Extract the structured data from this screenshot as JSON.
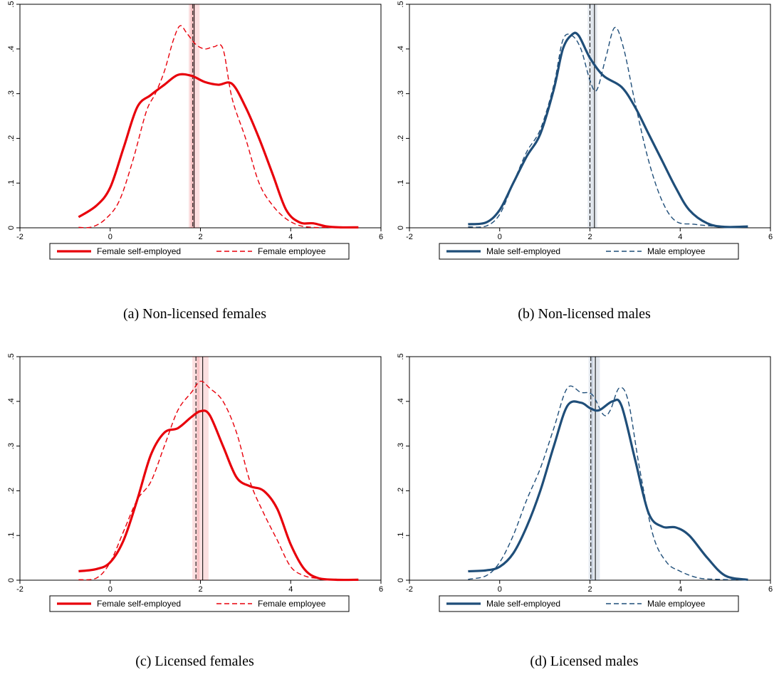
{
  "chart_data": [
    {
      "panel": "a",
      "type": "line",
      "caption": "(a) Non-licensed females",
      "xlim": [
        -2,
        6
      ],
      "ylim": [
        0,
        0.5
      ],
      "xticks": [
        "-2",
        "0",
        "2",
        "4",
        "6"
      ],
      "yticks": [
        ".5",
        ".4",
        ".3",
        ".2",
        ".1",
        "0"
      ],
      "grid": false,
      "legend_placement": "bottom",
      "color": "#e8000b",
      "vlines": [
        {
          "style": "dashed",
          "x": 1.83,
          "ci": [
            1.78,
            1.88
          ]
        },
        {
          "style": "solid",
          "x": 1.86,
          "ci": [
            1.74,
            1.98
          ]
        }
      ],
      "series": [
        {
          "name": "Female self-employed",
          "style": "solid",
          "x": [
            -0.7,
            -0.3,
            0,
            0.3,
            0.6,
            0.9,
            1.2,
            1.5,
            1.8,
            2.1,
            2.4,
            2.7,
            3.0,
            3.3,
            3.6,
            3.9,
            4.2,
            4.5,
            4.8,
            5.1,
            5.5
          ],
          "y": [
            0.024,
            0.05,
            0.09,
            0.18,
            0.27,
            0.297,
            0.32,
            0.342,
            0.34,
            0.326,
            0.32,
            0.322,
            0.27,
            0.2,
            0.12,
            0.04,
            0.012,
            0.01,
            0.003,
            0.001,
            0.001
          ]
        },
        {
          "name": "Female employee",
          "style": "dashed",
          "x": [
            -0.7,
            -0.4,
            -0.1,
            0.2,
            0.5,
            0.8,
            1.0,
            1.2,
            1.4,
            1.55,
            1.7,
            1.9,
            2.1,
            2.3,
            2.5,
            2.7,
            3.0,
            3.3,
            3.6,
            3.9,
            4.2,
            4.5,
            4.8,
            5.1,
            5.5
          ],
          "y": [
            0.001,
            0.002,
            0.02,
            0.06,
            0.15,
            0.26,
            0.3,
            0.35,
            0.42,
            0.452,
            0.435,
            0.41,
            0.4,
            0.405,
            0.4,
            0.29,
            0.2,
            0.1,
            0.05,
            0.02,
            0.005,
            0.001,
            0.001,
            0.001,
            0.001
          ]
        }
      ]
    },
    {
      "panel": "b",
      "type": "line",
      "caption": "(b) Non-licensed males",
      "xlim": [
        -2,
        6
      ],
      "ylim": [
        0,
        0.5
      ],
      "xticks": [
        "-2",
        "0",
        "2",
        "4",
        "6"
      ],
      "yticks": [
        ".5",
        ".4",
        ".3",
        ".2",
        ".1",
        "0"
      ],
      "grid": false,
      "legend_placement": "bottom",
      "color": "#1f4e79",
      "vlines": [
        {
          "style": "dashed",
          "x": 2.0,
          "ci": [
            1.95,
            2.05
          ]
        },
        {
          "style": "solid",
          "x": 2.1,
          "ci": [
            2.04,
            2.16
          ]
        }
      ],
      "series": [
        {
          "name": "Male self-employed",
          "style": "solid",
          "x": [
            -0.7,
            -0.3,
            0,
            0.3,
            0.6,
            0.9,
            1.2,
            1.4,
            1.6,
            1.75,
            2.0,
            2.3,
            2.7,
            3.0,
            3.3,
            3.6,
            3.9,
            4.2,
            4.6,
            5.0,
            5.5
          ],
          "y": [
            0.008,
            0.012,
            0.04,
            0.1,
            0.16,
            0.21,
            0.31,
            0.4,
            0.432,
            0.43,
            0.38,
            0.34,
            0.315,
            0.27,
            0.21,
            0.15,
            0.09,
            0.04,
            0.01,
            0.002,
            0.003
          ]
        },
        {
          "name": "Male employee",
          "style": "dashed",
          "x": [
            -0.7,
            -0.3,
            0,
            0.3,
            0.6,
            0.9,
            1.2,
            1.4,
            1.6,
            1.8,
            2.0,
            2.15,
            2.35,
            2.55,
            2.75,
            3.0,
            3.3,
            3.6,
            3.9,
            4.3,
            4.7,
            5.1,
            5.5
          ],
          "y": [
            0.002,
            0.004,
            0.03,
            0.1,
            0.17,
            0.22,
            0.32,
            0.42,
            0.43,
            0.4,
            0.33,
            0.308,
            0.38,
            0.448,
            0.4,
            0.28,
            0.15,
            0.06,
            0.015,
            0.008,
            0.004,
            0.002,
            0.001
          ]
        }
      ]
    },
    {
      "panel": "c",
      "type": "line",
      "caption": "(c) Licensed females",
      "xlim": [
        -2,
        6
      ],
      "ylim": [
        0,
        0.5
      ],
      "xticks": [
        "-2",
        "0",
        "2",
        "4",
        "6"
      ],
      "yticks": [
        ".5",
        ".4",
        ".3",
        ".2",
        ".1",
        "0"
      ],
      "grid": false,
      "legend_placement": "bottom",
      "color": "#e8000b",
      "vlines": [
        {
          "style": "dashed",
          "x": 1.9,
          "ci": [
            1.82,
            1.98
          ]
        },
        {
          "style": "solid",
          "x": 2.05,
          "ci": [
            1.92,
            2.18
          ]
        }
      ],
      "series": [
        {
          "name": "Female self-employed",
          "style": "solid",
          "x": [
            -0.7,
            -0.3,
            0,
            0.3,
            0.6,
            0.9,
            1.2,
            1.5,
            1.8,
            2.0,
            2.2,
            2.5,
            2.8,
            3.1,
            3.4,
            3.7,
            4.0,
            4.3,
            4.6,
            5.0,
            5.5
          ],
          "y": [
            0.02,
            0.025,
            0.04,
            0.09,
            0.18,
            0.28,
            0.33,
            0.34,
            0.365,
            0.378,
            0.37,
            0.3,
            0.23,
            0.21,
            0.2,
            0.16,
            0.08,
            0.025,
            0.005,
            0.001,
            0.001
          ]
        },
        {
          "name": "Female employee",
          "style": "dashed",
          "x": [
            -0.7,
            -0.3,
            0,
            0.3,
            0.6,
            0.9,
            1.2,
            1.5,
            1.8,
            2.0,
            2.2,
            2.5,
            2.8,
            3.1,
            3.4,
            3.7,
            4.0,
            4.3,
            4.6,
            5.0,
            5.5
          ],
          "y": [
            0.001,
            0.005,
            0.04,
            0.11,
            0.18,
            0.22,
            0.3,
            0.38,
            0.42,
            0.445,
            0.43,
            0.4,
            0.33,
            0.22,
            0.15,
            0.09,
            0.03,
            0.01,
            0.004,
            0.001,
            0.001
          ]
        }
      ]
    },
    {
      "panel": "d",
      "type": "line",
      "caption": "(d) Licensed males",
      "xlim": [
        -2,
        6
      ],
      "ylim": [
        0,
        0.5
      ],
      "xticks": [
        "-2",
        "0",
        "2",
        "4",
        "6"
      ],
      "yticks": [
        ".5",
        ".4",
        ".3",
        ".2",
        ".1",
        "0"
      ],
      "grid": false,
      "legend_placement": "bottom",
      "color": "#1f4e79",
      "vlines": [
        {
          "style": "dashed",
          "x": 2.02,
          "ci": [
            1.97,
            2.07
          ]
        },
        {
          "style": "solid",
          "x": 2.12,
          "ci": [
            2.02,
            2.22
          ]
        }
      ],
      "series": [
        {
          "name": "Male self-employed",
          "style": "solid",
          "x": [
            -0.7,
            -0.3,
            0,
            0.3,
            0.6,
            0.9,
            1.2,
            1.5,
            1.8,
            2.0,
            2.2,
            2.5,
            2.7,
            3.0,
            3.3,
            3.6,
            3.9,
            4.2,
            4.6,
            5.0,
            5.5
          ],
          "y": [
            0.02,
            0.022,
            0.03,
            0.06,
            0.12,
            0.2,
            0.3,
            0.39,
            0.397,
            0.385,
            0.38,
            0.4,
            0.39,
            0.27,
            0.15,
            0.12,
            0.118,
            0.1,
            0.05,
            0.01,
            0.001
          ]
        },
        {
          "name": "Male employee",
          "style": "dashed",
          "x": [
            -0.7,
            -0.3,
            0,
            0.3,
            0.6,
            0.9,
            1.2,
            1.5,
            1.8,
            2.05,
            2.3,
            2.45,
            2.65,
            2.85,
            3.1,
            3.4,
            3.7,
            4.0,
            4.4,
            4.8,
            5.2,
            5.5
          ],
          "y": [
            0.002,
            0.01,
            0.04,
            0.1,
            0.18,
            0.25,
            0.34,
            0.43,
            0.42,
            0.415,
            0.37,
            0.38,
            0.43,
            0.4,
            0.25,
            0.1,
            0.04,
            0.02,
            0.005,
            0.002,
            0.001,
            0.001
          ]
        }
      ]
    }
  ]
}
